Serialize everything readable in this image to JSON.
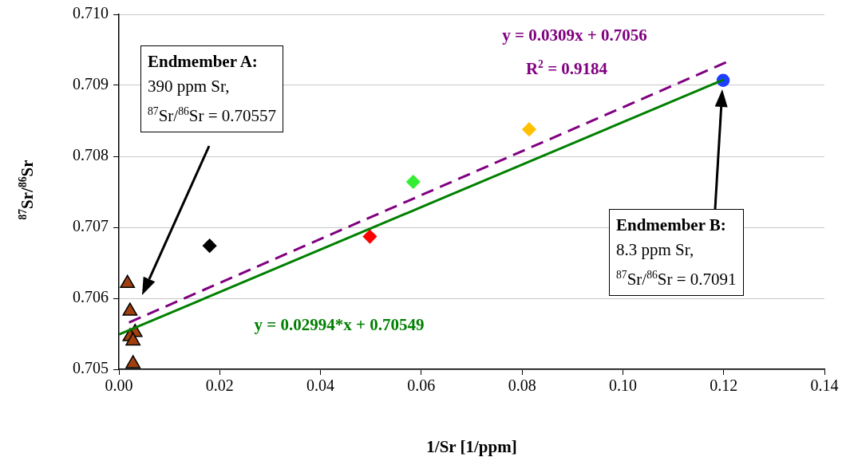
{
  "chart_data": {
    "type": "scatter",
    "xlabel": "1/Sr [1/ppm]",
    "ylabel": "$^{87}$Sr/$^{86}$Sr",
    "xlim": [
      0,
      0.14
    ],
    "xticks": [
      {
        "value": 0,
        "label": "0.00"
      },
      {
        "value": 0.02,
        "label": "0.02"
      },
      {
        "value": 0.04,
        "label": "0.04"
      },
      {
        "value": 0.06,
        "label": "0.06"
      },
      {
        "value": 0.08,
        "label": "0.08"
      },
      {
        "value": 0.1,
        "label": "0.10"
      },
      {
        "value": 0.12,
        "label": "0.12"
      },
      {
        "value": 0.14,
        "label": "0.14"
      }
    ],
    "ylim": [
      0.705,
      0.71
    ],
    "yticks": [
      {
        "value": 0.705,
        "label": "0.705"
      },
      {
        "value": 0.706,
        "label": "0.706"
      },
      {
        "value": 0.707,
        "label": "0.707"
      },
      {
        "value": 0.708,
        "label": "0.708"
      },
      {
        "value": 0.709,
        "label": "0.709"
      },
      {
        "value": 0.71,
        "label": "0.710"
      }
    ],
    "grid": "y",
    "legend": false,
    "series": [
      {
        "type": "scatter",
        "marker": "triangle",
        "color": "#a0400f",
        "x": [
          0.0017,
          0.0022,
          0.0032,
          0.0022,
          0.0028,
          0.0028
        ],
        "values": [
          0.70621,
          0.70582,
          0.70552,
          0.70546,
          0.7054,
          0.70508
        ]
      },
      {
        "type": "scatter",
        "marker": "diamond",
        "colors": [
          "#000000",
          "#ff0000",
          "#33ee33",
          "#ffc000"
        ],
        "x": [
          0.018,
          0.0498,
          0.0584,
          0.0814
        ],
        "values": [
          0.70674,
          0.70687,
          0.70764,
          0.70838
        ]
      },
      {
        "type": "scatter",
        "marker": "circle",
        "color": "#1f3fff",
        "x": [
          0.1199
        ],
        "values": [
          0.70907
        ]
      },
      {
        "type": "line",
        "marker": "none",
        "line_style": "solid",
        "color": "#008000",
        "x": [
          0,
          0.12
        ],
        "values": [
          0.70549,
          0.70908
        ]
      },
      {
        "type": "line",
        "marker": "none",
        "line_style": "dashed",
        "color": "#800080",
        "x": [
          0.002,
          0.121
        ],
        "values": [
          0.70566,
          0.70934
        ]
      }
    ],
    "annotations": [
      "Endmember A:\n390 ppm Sr,\n$^{87}$Sr/$^{86}$Sr = 0.70557",
      "Endmember B:\n8.3 ppm Sr,\n$^{87}$Sr/$^{86}$Sr = 0.7091",
      "y = 0.0309x + 0.7056",
      "R$^{2}$ = 0.9184",
      "y = 0.02994*x + 0.70549"
    ]
  }
}
